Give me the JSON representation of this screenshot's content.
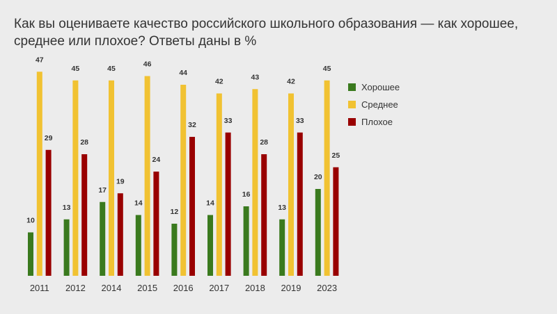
{
  "title_line1": "Как вы оцениваете качество российского школьного образования — как хорошее,",
  "title_line2": "среднее или плохое? Ответы даны в %",
  "chart_data": {
    "type": "bar",
    "title": "Как вы оцениваете качество российского школьного образования — как хорошее, среднее или плохое? Ответы даны в %",
    "categories": [
      "2011",
      "2012",
      "2014",
      "2015",
      "2016",
      "2017",
      "2018",
      "2019",
      "2023"
    ],
    "series": [
      {
        "name": "Хорошее",
        "color": "#3a7a1e",
        "values": [
          10,
          13,
          17,
          14,
          12,
          14,
          16,
          13,
          20
        ]
      },
      {
        "name": "Среднее",
        "color": "#f1c232",
        "values": [
          47,
          45,
          45,
          46,
          44,
          42,
          43,
          42,
          45
        ]
      },
      {
        "name": "Плохое",
        "color": "#990000",
        "values": [
          29,
          28,
          19,
          24,
          32,
          33,
          28,
          33,
          25
        ]
      }
    ],
    "ylim": [
      0,
      50
    ],
    "grid": false,
    "legend_position": "right"
  }
}
